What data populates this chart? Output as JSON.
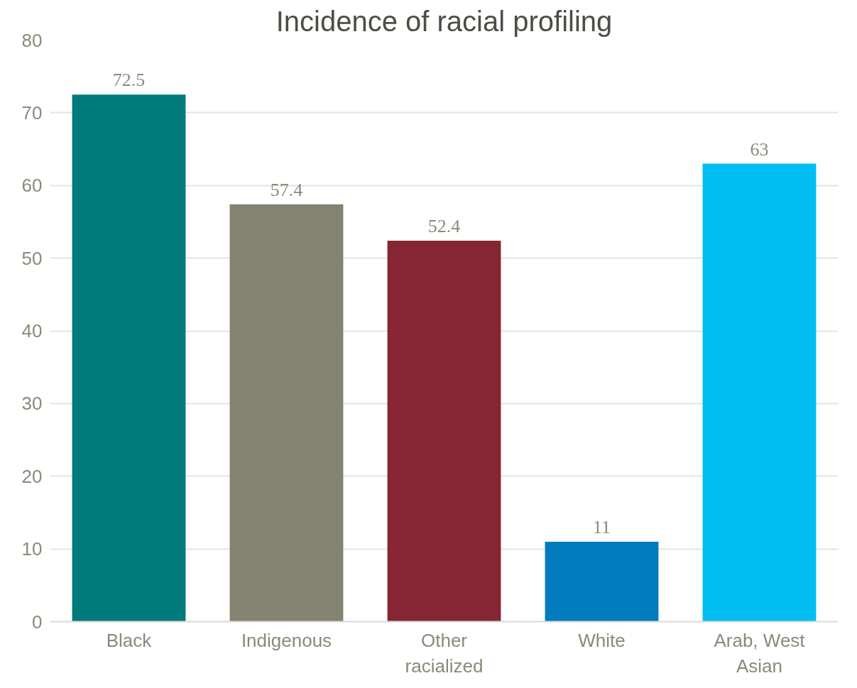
{
  "chart_data": {
    "type": "bar",
    "title": "Incidence of racial profiling",
    "categories": [
      "Black",
      "Indigenous",
      "Other racialized",
      "White",
      "Arab, West Asian"
    ],
    "values": [
      72.5,
      57.4,
      52.4,
      11,
      63
    ],
    "colors": [
      "#007a7a",
      "#848270",
      "#862633",
      "#007bbd",
      "#00bdf2"
    ],
    "ylim": [
      0,
      80
    ],
    "yticks": [
      0,
      10,
      20,
      30,
      40,
      50,
      60,
      70,
      80
    ],
    "grid": "y",
    "data_labels": true
  }
}
